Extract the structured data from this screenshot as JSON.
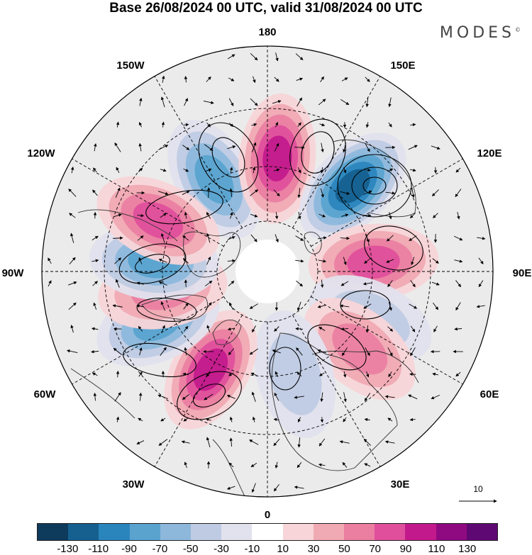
{
  "title": "Base 26/08/2024 00 UTC, valid 31/08/2024 00 UTC",
  "brand": "MODES",
  "brand_mark": "©",
  "longitude_labels": {
    "lon_180": "180",
    "lon_150e": "150E",
    "lon_120e": "120E",
    "lon_90e": "90E",
    "lon_60e": "60E",
    "lon_30e": "30E",
    "lon_0": "0",
    "lon_30w": "30W",
    "lon_60w": "60W",
    "lon_90w": "90W",
    "lon_120w": "120W",
    "lon_150w": "150W"
  },
  "vector_scale_label": "10",
  "legend": {
    "colors": [
      "#0e3a5c",
      "#15608f",
      "#2b85bd",
      "#5aa3cf",
      "#8db8dc",
      "#bfcbe3",
      "#e2e2ee",
      "#ffffff",
      "#f8d5d8",
      "#f0aab4",
      "#ea7fa2",
      "#e04f9c",
      "#c21a8c",
      "#8f0a80",
      "#5e0873"
    ],
    "labels": [
      "-130",
      "-110",
      "-90",
      "-70",
      "-50",
      "-30",
      "-10",
      "10",
      "30",
      "50",
      "70",
      "90",
      "110",
      "130"
    ]
  },
  "chart_data": {
    "type": "heatmap",
    "projection": "north-polar-stereographic",
    "colorbar_bounds": [
      -130,
      -110,
      -90,
      -70,
      -50,
      -30,
      -10,
      10,
      30,
      50,
      70,
      90,
      110,
      130
    ],
    "anomaly_centers": [
      {
        "lon": -150,
        "value": -70
      },
      {
        "lon": 175,
        "value": 100
      },
      {
        "lon": 135,
        "value": -120
      },
      {
        "lon": 95,
        "value": 80
      },
      {
        "lon": 65,
        "value": -40
      },
      {
        "lon": 50,
        "value": 60
      },
      {
        "lon": 15,
        "value": -40
      },
      {
        "lon": -30,
        "value": 90
      },
      {
        "lon": -65,
        "value": -70
      },
      {
        "lon": -80,
        "value": 60
      },
      {
        "lon": -95,
        "value": -80
      },
      {
        "lon": -115,
        "value": 70
      }
    ]
  }
}
